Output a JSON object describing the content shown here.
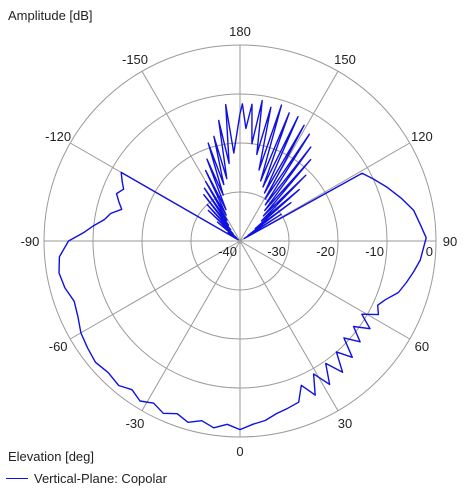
{
  "chart_data": {
    "type": "line",
    "projection": "polar",
    "radial_axis_label": "Amplitude [dB]",
    "angular_axis_label": "Elevation [deg]",
    "radial_ticks": [
      "-40",
      "-30",
      "-20",
      "-10",
      "0"
    ],
    "radial_range": [
      -40,
      0
    ],
    "angular_ticks": [
      {
        "angle": 180,
        "label": "180"
      },
      {
        "angle": 150,
        "label": "150"
      },
      {
        "angle": 120,
        "label": "120"
      },
      {
        "angle": 90,
        "label": "90"
      },
      {
        "angle": 60,
        "label": "60"
      },
      {
        "angle": 30,
        "label": "30"
      },
      {
        "angle": 0,
        "label": "0"
      },
      {
        "angle": -30,
        "label": "-30"
      },
      {
        "angle": -60,
        "label": "-60"
      },
      {
        "angle": -90,
        "label": "-90"
      },
      {
        "angle": -120,
        "label": "-120"
      },
      {
        "angle": -150,
        "label": "-150"
      }
    ],
    "grid": true,
    "legend_position": "bottom-left",
    "series": [
      {
        "name": "Vertical-Plane: Copolar",
        "color": "#1010e0",
        "points": [
          [
            -180,
            -14
          ],
          [
            -176,
            -22
          ],
          [
            -174,
            -12
          ],
          [
            -172,
            -24
          ],
          [
            -170,
            -15
          ],
          [
            -168,
            -27
          ],
          [
            -166,
            -18
          ],
          [
            -164,
            -28
          ],
          [
            -162,
            -19
          ],
          [
            -160,
            -30
          ],
          [
            -158,
            -22
          ],
          [
            -156,
            -33
          ],
          [
            -154,
            -24
          ],
          [
            -152,
            -34
          ],
          [
            -150,
            -26
          ],
          [
            -148,
            -35
          ],
          [
            -146,
            -27
          ],
          [
            -144,
            -36
          ],
          [
            -142,
            -28
          ],
          [
            -140,
            -37
          ],
          [
            -138,
            -30
          ],
          [
            -136,
            -38
          ],
          [
            -134,
            -31
          ],
          [
            -132,
            -39
          ],
          [
            -130,
            -34
          ],
          [
            -128,
            -39
          ],
          [
            -126,
            -37
          ],
          [
            -124,
            -39.5
          ],
          [
            -122,
            -39
          ],
          [
            -120,
            -12
          ],
          [
            -117,
            -13
          ],
          [
            -114,
            -14
          ],
          [
            -111,
            -13
          ],
          [
            -108,
            -14
          ],
          [
            -105,
            -15
          ],
          [
            -102,
            -13
          ],
          [
            -99,
            -12
          ],
          [
            -96,
            -10
          ],
          [
            -93,
            -8
          ],
          [
            -90,
            -5
          ],
          [
            -85,
            -3
          ],
          [
            -80,
            -2.5
          ],
          [
            -75,
            -3
          ],
          [
            -70,
            -4
          ],
          [
            -65,
            -3.5
          ],
          [
            -60,
            -2.5
          ],
          [
            -55,
            -2
          ],
          [
            -50,
            -1.5
          ],
          [
            -45,
            -2
          ],
          [
            -40,
            -1.5
          ],
          [
            -36,
            -2.5
          ],
          [
            -32,
            -1.5
          ],
          [
            -28,
            -2.5
          ],
          [
            -24,
            -1.5
          ],
          [
            -20,
            -2.5
          ],
          [
            -16,
            -1.5
          ],
          [
            -12,
            -2.5
          ],
          [
            -8,
            -1.5
          ],
          [
            -4,
            -2.5
          ],
          [
            0,
            -1.5
          ],
          [
            4,
            -2.5
          ],
          [
            8,
            -3
          ],
          [
            12,
            -4
          ],
          [
            16,
            -4.5
          ],
          [
            20,
            -5
          ],
          [
            23,
            -8
          ],
          [
            26,
            -5
          ],
          [
            29,
            -9
          ],
          [
            32,
            -5.5
          ],
          [
            35,
            -9.5
          ],
          [
            38,
            -6
          ],
          [
            41,
            -10
          ],
          [
            44,
            -7
          ],
          [
            47,
            -11
          ],
          [
            50,
            -8
          ],
          [
            53,
            -11
          ],
          [
            56,
            -8
          ],
          [
            59,
            -11
          ],
          [
            62,
            -8
          ],
          [
            65,
            -9
          ],
          [
            68,
            -8
          ],
          [
            72,
            -6
          ],
          [
            76,
            -5
          ],
          [
            80,
            -4
          ],
          [
            84,
            -3
          ],
          [
            88,
            -2.5
          ],
          [
            91,
            -2
          ],
          [
            95,
            -3
          ],
          [
            100,
            -4
          ],
          [
            105,
            -6
          ],
          [
            110,
            -8
          ],
          [
            115,
            -10
          ],
          [
            119,
            -11.5
          ],
          [
            121,
            -39
          ],
          [
            123,
            -30
          ],
          [
            125,
            -38
          ],
          [
            127,
            -27
          ],
          [
            129,
            -36
          ],
          [
            131,
            -24
          ],
          [
            133,
            -34
          ],
          [
            135,
            -21
          ],
          [
            137,
            -33
          ],
          [
            139,
            -18
          ],
          [
            141,
            -32
          ],
          [
            143,
            -16
          ],
          [
            145,
            -31
          ],
          [
            147,
            -14
          ],
          [
            149,
            -30
          ],
          [
            151,
            -13
          ],
          [
            153,
            -29
          ],
          [
            155,
            -12
          ],
          [
            157,
            -28
          ],
          [
            159,
            -12
          ],
          [
            161,
            -27
          ],
          [
            163,
            -11
          ],
          [
            165,
            -25
          ],
          [
            167,
            -12
          ],
          [
            169,
            -22
          ],
          [
            171,
            -11
          ],
          [
            173,
            -20
          ],
          [
            175,
            -12
          ],
          [
            177,
            -17
          ],
          [
            179,
            -12
          ],
          [
            180,
            -14
          ]
        ]
      }
    ]
  },
  "labels": {
    "amplitude": "Amplitude [dB]",
    "elevation": "Elevation [deg]",
    "legend": "Vertical-Plane: Copolar"
  }
}
